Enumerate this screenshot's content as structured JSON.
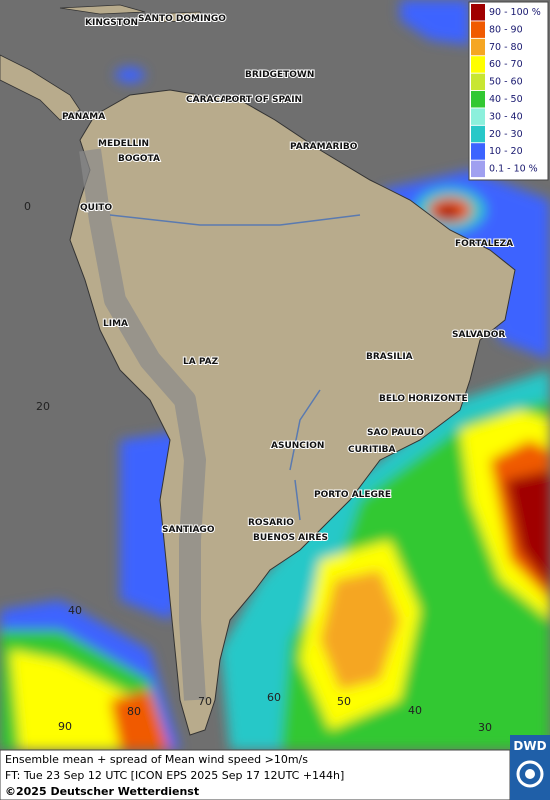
{
  "legend": [
    {
      "label": "90 - 100 %",
      "color": "#a00000"
    },
    {
      "label": "80 - 90",
      "color": "#f05a00"
    },
    {
      "label": "70 - 80",
      "color": "#f5a623"
    },
    {
      "label": "60 - 70",
      "color": "#ffff00"
    },
    {
      "label": "50 - 60",
      "color": "#c8e632"
    },
    {
      "label": "40 - 50",
      "color": "#32c832"
    },
    {
      "label": "30 - 40",
      "color": "#8cf0dc"
    },
    {
      "label": "20 - 30",
      "color": "#28c8c8"
    },
    {
      "label": "10 - 20",
      "color": "#3c64ff"
    },
    {
      "label": "0.1 - 10 %",
      "color": "#a0a0f0"
    }
  ],
  "cities": [
    "KINGSTON",
    "SANTO DOMINGO",
    "BRIDGETOWN",
    "CARACAS",
    "PORT OF SPAIN",
    "PANAMA",
    "MEDELLIN",
    "BOGOTA",
    "PARAMARIBO",
    "QUITO",
    "FORTALEZA",
    "LIMA",
    "SALVADOR",
    "LA PAZ",
    "BRASILIA",
    "BELO HORIZONTE",
    "SAO PAULO",
    "ASUNCION",
    "CURITIBA",
    "PORTO ALEGRE",
    "ROSARIO",
    "SANTIAGO",
    "BUENOS AIRES"
  ],
  "grid_labels": [
    "0",
    "20",
    "40",
    "90",
    "80",
    "70",
    "60",
    "50",
    "40",
    "30"
  ],
  "footer": [
    "Ensemble mean + spread of Mean wind speed >10m/s",
    "FT: Tue 23 Sep 12 UTC [ICON EPS 2025 Sep 17 12UTC +144h]",
    "©2025 Deutscher Wetterdienst"
  ],
  "logo": "DWD"
}
